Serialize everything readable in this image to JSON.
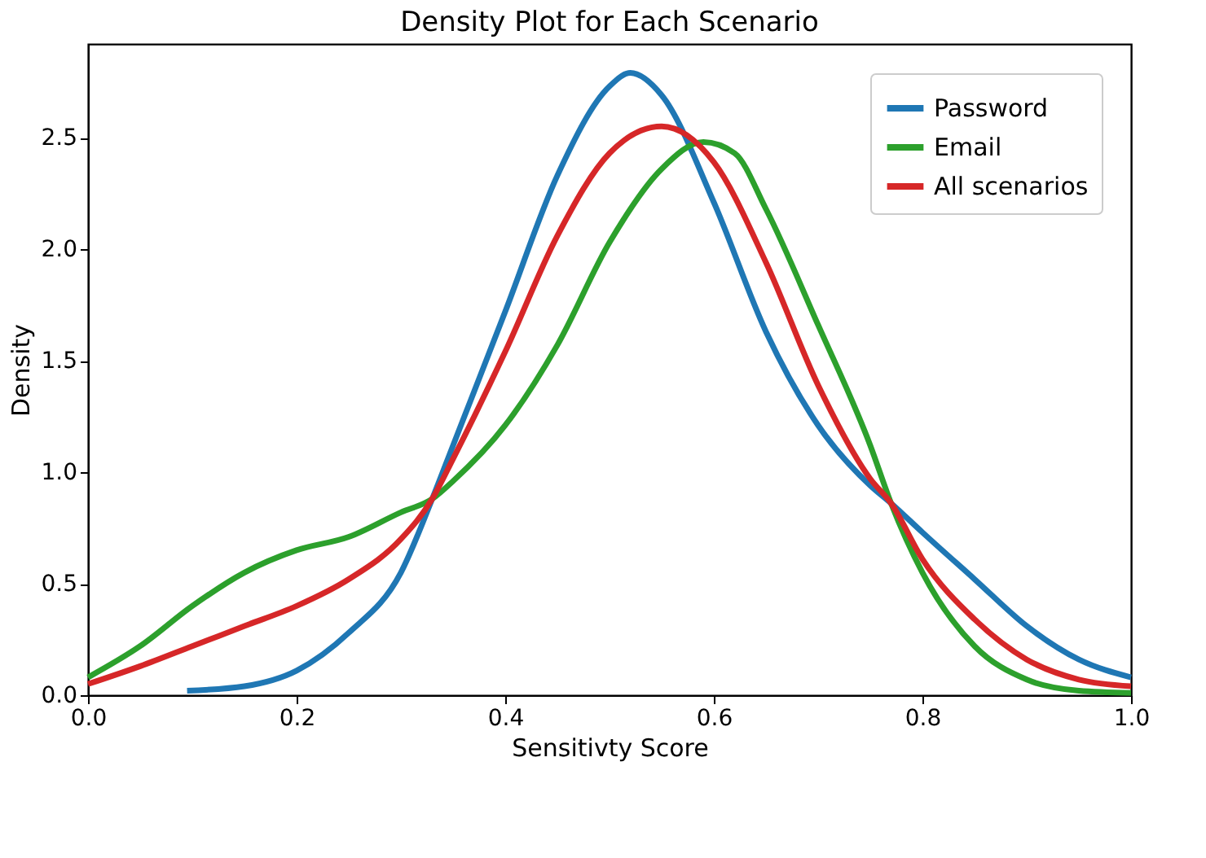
{
  "chart_data": {
    "type": "line",
    "title": "Density Plot for Each Scenario",
    "xlabel": "Sensitivty Score",
    "ylabel": "Density",
    "xlim": [
      0,
      1
    ],
    "ylim": [
      0,
      2.92
    ],
    "xticks": [
      {
        "value": 0,
        "label": "0.0"
      },
      {
        "value": 0.2,
        "label": "0.2"
      },
      {
        "value": 0.4,
        "label": "0.4"
      },
      {
        "value": 0.6,
        "label": "0.6"
      },
      {
        "value": 0.8,
        "label": "0.8"
      },
      {
        "value": 1,
        "label": "1.0"
      }
    ],
    "yticks": [
      {
        "value": 0,
        "label": "0.0"
      },
      {
        "value": 0.5,
        "label": "0.5"
      },
      {
        "value": 1,
        "label": "1.0"
      },
      {
        "value": 1.5,
        "label": "1.5"
      },
      {
        "value": 2,
        "label": "2.0"
      },
      {
        "value": 2.5,
        "label": "2.5"
      }
    ],
    "grid": false,
    "legend": "top right",
    "marker": "none",
    "line_style": "solid",
    "series": [
      {
        "name": "Password",
        "color": "#1f77b4",
        "x": [
          0.095,
          0.15,
          0.2,
          0.25,
          0.3,
          0.33,
          0.35,
          0.4,
          0.45,
          0.5,
          0.52,
          0.55,
          0.6,
          0.65,
          0.7,
          0.75,
          0.77,
          0.8,
          0.85,
          0.9,
          0.95,
          1.0
        ],
        "values": [
          0.02,
          0.04,
          0.11,
          0.28,
          0.55,
          0.88,
          1.12,
          1.72,
          2.33,
          2.73,
          2.79,
          2.69,
          2.21,
          1.63,
          1.21,
          0.94,
          0.86,
          0.73,
          0.52,
          0.31,
          0.16,
          0.08
        ]
      },
      {
        "name": "Email",
        "color": "#2ca02c",
        "x": [
          0,
          0.05,
          0.1,
          0.15,
          0.2,
          0.25,
          0.3,
          0.33,
          0.35,
          0.4,
          0.45,
          0.5,
          0.55,
          0.59,
          0.62,
          0.65,
          0.7,
          0.75,
          0.77,
          0.8,
          0.85,
          0.9,
          0.95,
          1.0
        ],
        "values": [
          0.08,
          0.22,
          0.4,
          0.55,
          0.65,
          0.71,
          0.82,
          0.88,
          0.96,
          1.21,
          1.57,
          2.03,
          2.36,
          2.48,
          2.43,
          2.18,
          1.66,
          1.12,
          0.86,
          0.55,
          0.22,
          0.07,
          0.02,
          0.01
        ]
      },
      {
        "name": "All scenarios",
        "color": "#d62728",
        "x": [
          0,
          0.05,
          0.1,
          0.15,
          0.2,
          0.25,
          0.3,
          0.33,
          0.35,
          0.4,
          0.45,
          0.5,
          0.55,
          0.6,
          0.65,
          0.7,
          0.75,
          0.77,
          0.8,
          0.85,
          0.9,
          0.95,
          1.0
        ],
        "values": [
          0.05,
          0.13,
          0.22,
          0.31,
          0.4,
          0.52,
          0.7,
          0.88,
          1.06,
          1.54,
          2.06,
          2.43,
          2.55,
          2.39,
          1.94,
          1.39,
          0.97,
          0.86,
          0.61,
          0.34,
          0.16,
          0.07,
          0.04
        ]
      }
    ]
  }
}
